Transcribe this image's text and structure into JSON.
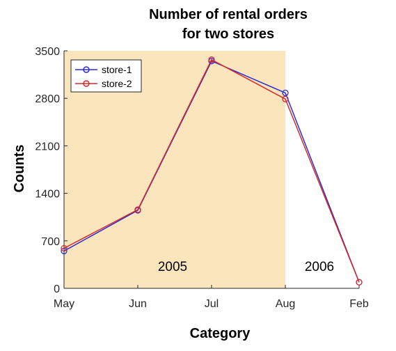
{
  "chart_data": {
    "type": "line",
    "title_lines": [
      "Number of rental orders",
      "for two stores"
    ],
    "xlabel": "Category",
    "ylabel": "Counts",
    "categories": [
      "May",
      "Jun",
      "Jul",
      "Aug",
      "Feb"
    ],
    "ylim": [
      0,
      3500
    ],
    "yticks": [
      0,
      700,
      1400,
      2100,
      2800,
      3500
    ],
    "series": [
      {
        "name": "store-1",
        "color": "#2b2bd4",
        "values": [
          550,
          1150,
          3350,
          2880,
          90
        ]
      },
      {
        "name": "store-2",
        "color": "#d42b2b",
        "values": [
          590,
          1160,
          3370,
          2790,
          90
        ]
      }
    ],
    "regions": [
      {
        "label": "2005",
        "from": "May",
        "to": "Aug",
        "color": "#fae5bd"
      },
      {
        "label": "2006",
        "from": "Aug",
        "to": "Feb",
        "color": "#ffffff"
      }
    ],
    "legend_position": "top-left",
    "grid": false
  }
}
